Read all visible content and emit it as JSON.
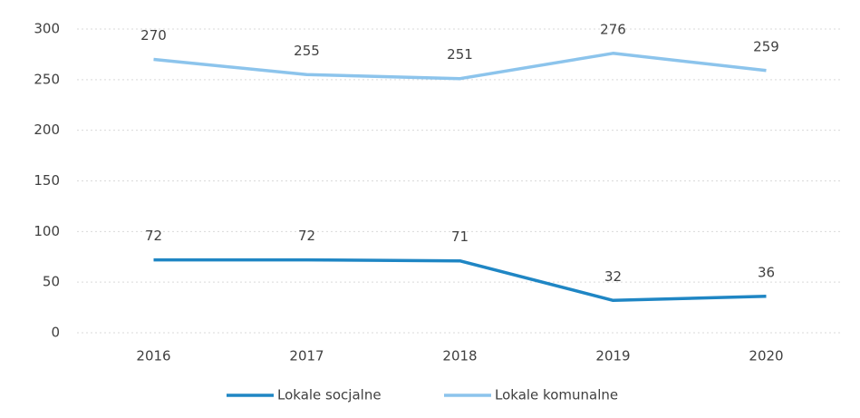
{
  "chart_data": {
    "type": "line",
    "categories": [
      "2016",
      "2017",
      "2018",
      "2019",
      "2020"
    ],
    "series": [
      {
        "name": "Lokale socjalne",
        "color": "#1f86c4",
        "values": [
          72,
          72,
          71,
          32,
          36
        ]
      },
      {
        "name": "Lokale komunalne",
        "color": "#8cc4ec",
        "values": [
          270,
          255,
          251,
          276,
          259
        ]
      }
    ],
    "ylim": [
      0,
      300
    ],
    "yticks": [
      0,
      50,
      100,
      150,
      200,
      250,
      300
    ],
    "grid": true,
    "legend": "bottom"
  }
}
